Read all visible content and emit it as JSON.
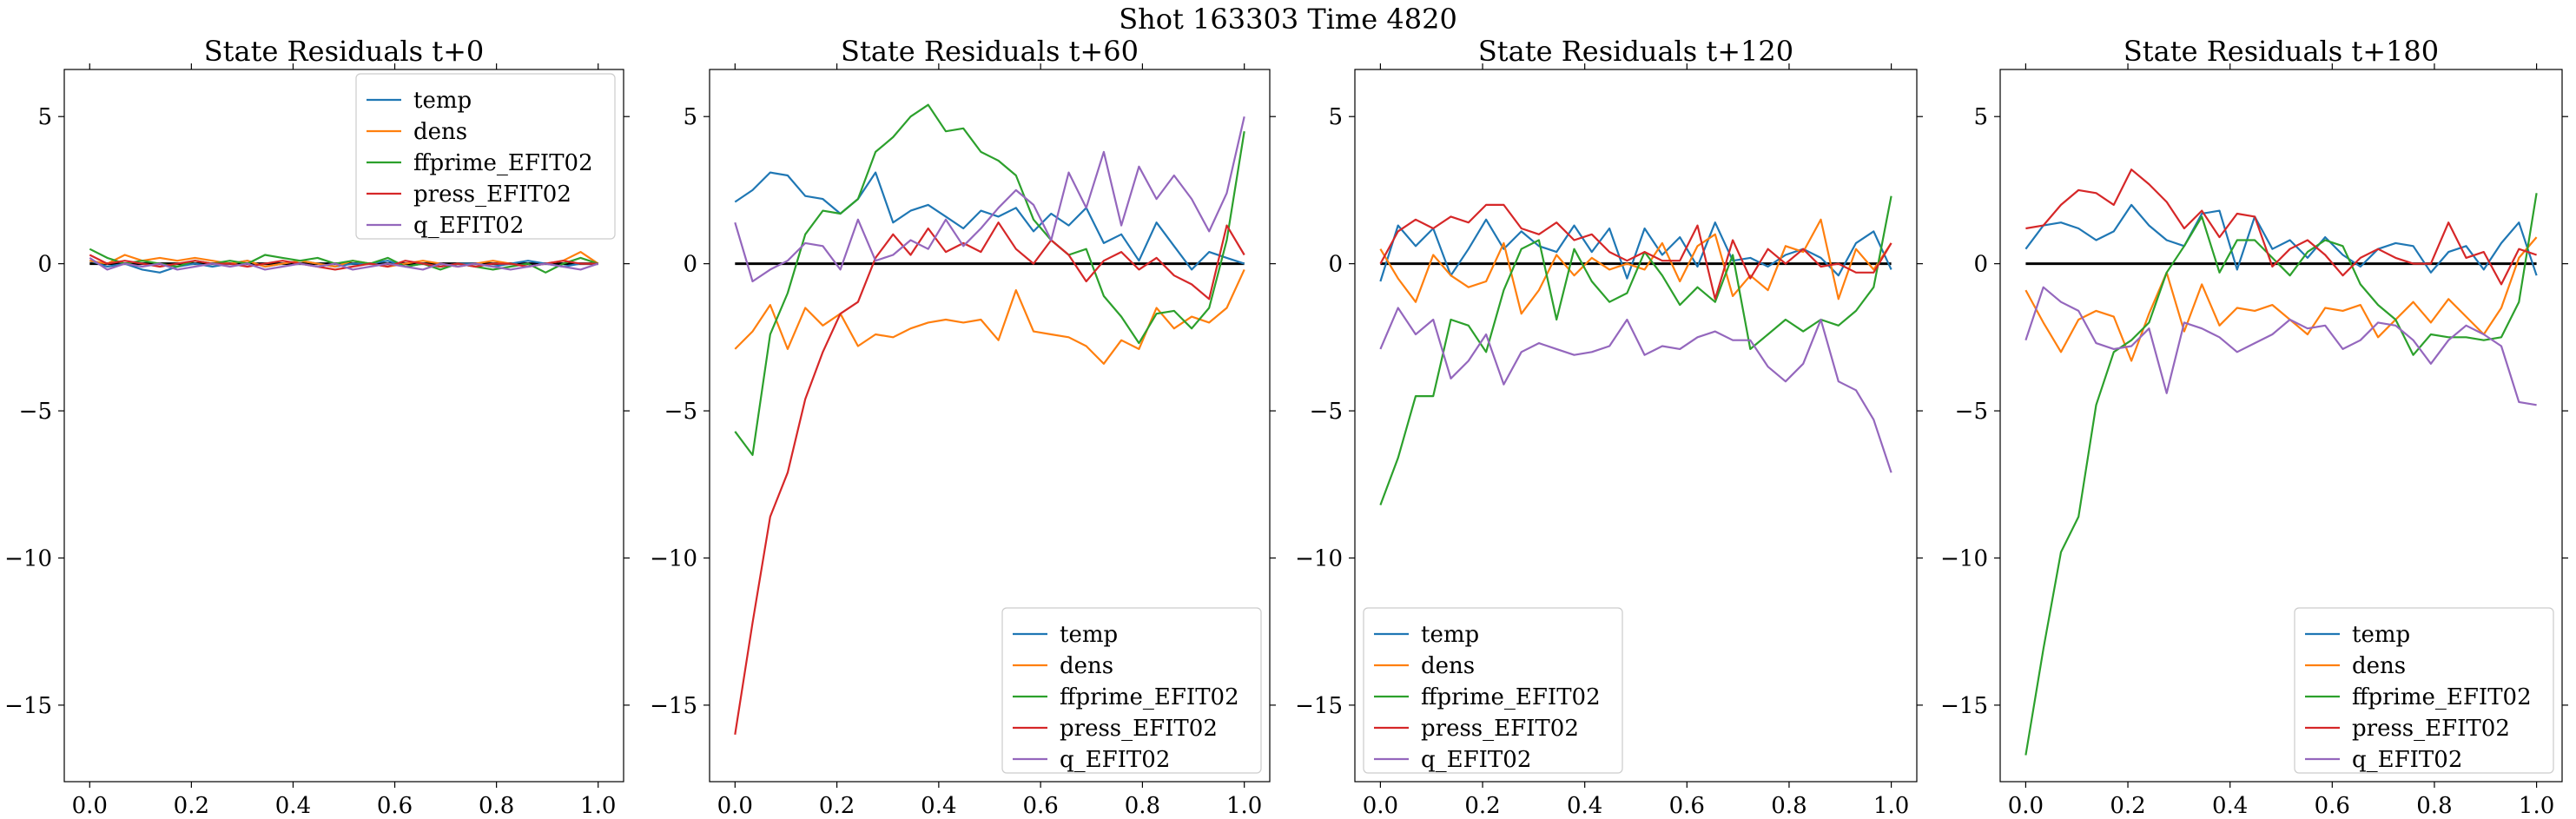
{
  "figure": {
    "suptitle": "Shot 163303   Time 4820"
  },
  "colors": {
    "temp": "#1f77b4",
    "dens": "#ff7f0e",
    "ffprime_EFIT02": "#2ca02c",
    "press_EFIT02": "#d62728",
    "q_EFIT02": "#9467bd",
    "zero_line": "#000000"
  },
  "chart_data": [
    {
      "type": "line",
      "title": "State Residuals t+0",
      "xlim": [
        -0.05,
        1.05
      ],
      "ylim": [
        -17.6,
        6.6
      ],
      "xticks": [
        "0.0",
        "0.2",
        "0.4",
        "0.6",
        "0.8",
        "1.0"
      ],
      "yticks": [
        "5",
        "0",
        "−5",
        "−10",
        "−15"
      ],
      "legend": "top-right",
      "reference_line": 0,
      "x": [
        0.0,
        0.0345,
        0.069,
        0.1034,
        0.1379,
        0.1724,
        0.2069,
        0.2414,
        0.2759,
        0.3103,
        0.3448,
        0.3793,
        0.4138,
        0.4483,
        0.4828,
        0.5172,
        0.5517,
        0.5862,
        0.6207,
        0.6552,
        0.6897,
        0.7241,
        0.7586,
        0.7931,
        0.8276,
        0.8621,
        0.8966,
        0.931,
        0.9655,
        1.0
      ],
      "series": [
        {
          "name": "temp",
          "values": [
            0.1,
            -0.1,
            0.0,
            -0.2,
            -0.3,
            -0.1,
            0.0,
            -0.1,
            0.0,
            0.1,
            -0.1,
            0.0,
            0.1,
            0.0,
            -0.1,
            0.0,
            0.0,
            0.1,
            -0.1,
            0.0,
            -0.1,
            0.0,
            0.0,
            -0.1,
            0.0,
            0.1,
            0.0,
            -0.1,
            0.0,
            0.0
          ]
        },
        {
          "name": "dens",
          "values": [
            0.1,
            0.0,
            0.3,
            0.1,
            0.2,
            0.1,
            0.2,
            0.1,
            0.0,
            0.1,
            -0.1,
            0.0,
            0.1,
            0.0,
            -0.1,
            0.1,
            0.0,
            -0.1,
            0.0,
            0.1,
            0.0,
            -0.1,
            0.0,
            0.1,
            0.0,
            -0.1,
            0.0,
            0.1,
            0.4,
            0.0
          ]
        },
        {
          "name": "ffprime_EFIT02",
          "values": [
            0.5,
            0.2,
            0.0,
            0.1,
            0.0,
            -0.1,
            0.1,
            0.0,
            0.1,
            0.0,
            0.3,
            0.2,
            0.1,
            0.2,
            0.0,
            0.1,
            0.0,
            0.2,
            -0.1,
            0.0,
            -0.2,
            0.0,
            -0.1,
            -0.2,
            -0.1,
            0.0,
            -0.3,
            0.0,
            0.2,
            0.0
          ]
        },
        {
          "name": "press_EFIT02",
          "values": [
            0.3,
            0.0,
            0.1,
            0.0,
            -0.1,
            0.0,
            0.1,
            0.0,
            0.0,
            -0.1,
            0.0,
            0.1,
            0.0,
            -0.1,
            -0.2,
            -0.1,
            0.0,
            -0.1,
            0.1,
            0.0,
            -0.1,
            0.0,
            -0.1,
            0.0,
            0.0,
            -0.1,
            0.0,
            0.1,
            0.0,
            0.0
          ]
        },
        {
          "name": "q_EFIT02",
          "values": [
            0.2,
            -0.2,
            0.0,
            -0.1,
            0.0,
            -0.2,
            -0.1,
            0.0,
            -0.1,
            0.0,
            -0.2,
            -0.1,
            0.0,
            -0.1,
            0.0,
            -0.2,
            -0.1,
            0.0,
            -0.1,
            -0.2,
            0.0,
            -0.1,
            0.0,
            -0.1,
            -0.2,
            -0.1,
            0.0,
            -0.1,
            -0.2,
            0.0
          ]
        }
      ]
    },
    {
      "type": "line",
      "title": "State Residuals t+60",
      "xlim": [
        -0.05,
        1.05
      ],
      "ylim": [
        -17.6,
        6.6
      ],
      "xticks": [
        "0.0",
        "0.2",
        "0.4",
        "0.6",
        "0.8",
        "1.0"
      ],
      "yticks": [
        "5",
        "0",
        "−5",
        "−10",
        "−15"
      ],
      "legend": "bottom-right",
      "reference_line": 0,
      "x": [
        0.0,
        0.0345,
        0.069,
        0.1034,
        0.1379,
        0.1724,
        0.2069,
        0.2414,
        0.2759,
        0.3103,
        0.3448,
        0.3793,
        0.4138,
        0.4483,
        0.4828,
        0.5172,
        0.5517,
        0.5862,
        0.6207,
        0.6552,
        0.6897,
        0.7241,
        0.7586,
        0.7931,
        0.8276,
        0.8621,
        0.8966,
        0.931,
        0.9655,
        1.0
      ],
      "series": [
        {
          "name": "temp",
          "values": [
            2.1,
            2.5,
            3.1,
            3.0,
            2.3,
            2.2,
            1.7,
            2.2,
            3.1,
            1.4,
            1.8,
            2.0,
            1.6,
            1.2,
            1.8,
            1.6,
            1.9,
            1.1,
            1.7,
            1.3,
            1.9,
            0.7,
            1.0,
            0.1,
            1.4,
            0.6,
            -0.2,
            0.4,
            0.2,
            0.0
          ]
        },
        {
          "name": "dens",
          "values": [
            -2.9,
            -2.3,
            -1.4,
            -2.9,
            -1.5,
            -2.1,
            -1.7,
            -2.8,
            -2.4,
            -2.5,
            -2.2,
            -2.0,
            -1.9,
            -2.0,
            -1.9,
            -2.6,
            -0.9,
            -2.3,
            -2.4,
            -2.5,
            -2.8,
            -3.4,
            -2.6,
            -2.9,
            -1.5,
            -2.2,
            -1.8,
            -2.0,
            -1.5,
            -0.2
          ]
        },
        {
          "name": "ffprime_EFIT02",
          "values": [
            -5.7,
            -6.5,
            -2.4,
            -1.0,
            1.0,
            1.8,
            1.7,
            2.2,
            3.8,
            4.3,
            5.0,
            5.4,
            4.5,
            4.6,
            3.8,
            3.5,
            3.0,
            1.5,
            0.8,
            0.3,
            0.5,
            -1.1,
            -1.8,
            -2.7,
            -1.7,
            -1.6,
            -2.2,
            -1.5,
            0.8,
            4.5
          ]
        },
        {
          "name": "press_EFIT02",
          "values": [
            -16.0,
            -12.2,
            -8.6,
            -7.1,
            -4.6,
            -3.0,
            -1.7,
            -1.3,
            0.2,
            1.0,
            0.3,
            1.2,
            0.4,
            0.7,
            0.4,
            1.4,
            0.5,
            0.0,
            0.8,
            0.3,
            -0.6,
            0.1,
            0.4,
            -0.2,
            0.2,
            -0.4,
            -0.7,
            -1.2,
            1.3,
            0.3
          ]
        },
        {
          "name": "q_EFIT02",
          "values": [
            1.4,
            -0.6,
            -0.2,
            0.1,
            0.7,
            0.6,
            -0.2,
            1.5,
            0.1,
            0.3,
            0.8,
            0.5,
            1.5,
            0.6,
            1.2,
            1.9,
            2.5,
            2.0,
            0.8,
            3.1,
            1.9,
            3.8,
            1.3,
            3.3,
            2.2,
            3.0,
            2.2,
            1.1,
            2.4,
            5.0
          ]
        }
      ]
    },
    {
      "type": "line",
      "title": "State Residuals t+120",
      "xlim": [
        -0.05,
        1.05
      ],
      "ylim": [
        -17.6,
        6.6
      ],
      "xticks": [
        "0.0",
        "0.2",
        "0.4",
        "0.6",
        "0.8",
        "1.0"
      ],
      "yticks": [
        "5",
        "0",
        "−5",
        "−10",
        "−15"
      ],
      "legend": "bottom-left",
      "reference_line": 0,
      "x": [
        0.0,
        0.0345,
        0.069,
        0.1034,
        0.1379,
        0.1724,
        0.2069,
        0.2414,
        0.2759,
        0.3103,
        0.3448,
        0.3793,
        0.4138,
        0.4483,
        0.4828,
        0.5172,
        0.5517,
        0.5862,
        0.6207,
        0.6552,
        0.6897,
        0.7241,
        0.7586,
        0.7931,
        0.8276,
        0.8621,
        0.8966,
        0.931,
        0.9655,
        1.0
      ],
      "series": [
        {
          "name": "temp",
          "values": [
            -0.6,
            1.3,
            0.6,
            1.2,
            -0.4,
            0.5,
            1.5,
            0.5,
            1.1,
            0.6,
            0.4,
            1.3,
            0.4,
            1.2,
            -0.5,
            1.2,
            0.3,
            0.9,
            -0.1,
            1.4,
            0.1,
            0.2,
            -0.1,
            0.3,
            0.5,
            0.2,
            -0.4,
            0.7,
            1.1,
            -0.2
          ]
        },
        {
          "name": "dens",
          "values": [
            0.5,
            -0.5,
            -1.3,
            0.3,
            -0.4,
            -0.8,
            -0.6,
            0.7,
            -1.7,
            -0.9,
            0.3,
            -0.4,
            0.2,
            -0.2,
            0.0,
            -0.2,
            0.7,
            -0.6,
            0.6,
            1.0,
            -1.1,
            -0.4,
            -0.9,
            0.6,
            0.4,
            1.5,
            -1.2,
            0.5,
            -0.2,
            0.7
          ]
        },
        {
          "name": "ffprime_EFIT02",
          "values": [
            -8.2,
            -6.6,
            -4.5,
            -4.5,
            -1.9,
            -2.1,
            -3.0,
            -0.9,
            0.5,
            0.8,
            -1.9,
            0.5,
            -0.6,
            -1.3,
            -1.0,
            0.4,
            -0.4,
            -1.4,
            -0.8,
            -1.3,
            0.3,
            -2.9,
            -2.4,
            -1.9,
            -2.3,
            -1.9,
            -2.1,
            -1.6,
            -0.8,
            2.3
          ]
        },
        {
          "name": "press_EFIT02",
          "values": [
            0.0,
            1.1,
            1.5,
            1.2,
            1.6,
            1.4,
            2.0,
            2.0,
            1.2,
            1.0,
            1.4,
            0.8,
            1.0,
            0.4,
            0.1,
            0.4,
            0.1,
            0.1,
            1.3,
            -1.2,
            0.8,
            -0.5,
            0.5,
            0.0,
            0.5,
            -0.1,
            0.0,
            -0.3,
            -0.3,
            0.7
          ]
        },
        {
          "name": "q_EFIT02",
          "values": [
            -2.9,
            -1.5,
            -2.4,
            -1.9,
            -3.9,
            -3.3,
            -2.4,
            -4.1,
            -3.0,
            -2.7,
            -2.9,
            -3.1,
            -3.0,
            -2.8,
            -1.9,
            -3.1,
            -2.8,
            -2.9,
            -2.5,
            -2.3,
            -2.6,
            -2.6,
            -3.5,
            -4.0,
            -3.4,
            -1.9,
            -4.0,
            -4.3,
            -5.3,
            -7.1
          ]
        }
      ]
    },
    {
      "type": "line",
      "title": "State Residuals t+180",
      "xlim": [
        -0.05,
        1.05
      ],
      "ylim": [
        -17.6,
        6.6
      ],
      "xticks": [
        "0.0",
        "0.2",
        "0.4",
        "0.6",
        "0.8",
        "1.0"
      ],
      "yticks": [
        "5",
        "0",
        "−5",
        "−10",
        "−15"
      ],
      "legend": "bottom-right",
      "reference_line": 0,
      "x": [
        0.0,
        0.0345,
        0.069,
        0.1034,
        0.1379,
        0.1724,
        0.2069,
        0.2414,
        0.2759,
        0.3103,
        0.3448,
        0.3793,
        0.4138,
        0.4483,
        0.4828,
        0.5172,
        0.5517,
        0.5862,
        0.6207,
        0.6552,
        0.6897,
        0.7241,
        0.7586,
        0.7931,
        0.8276,
        0.8621,
        0.8966,
        0.931,
        0.9655,
        1.0
      ],
      "series": [
        {
          "name": "temp",
          "values": [
            0.5,
            1.3,
            1.4,
            1.2,
            0.8,
            1.1,
            2.0,
            1.3,
            0.8,
            0.6,
            1.7,
            1.8,
            -0.2,
            1.6,
            0.5,
            0.8,
            0.2,
            0.9,
            0.3,
            -0.1,
            0.5,
            0.7,
            0.6,
            -0.3,
            0.4,
            0.6,
            -0.2,
            0.7,
            1.4,
            -0.4
          ]
        },
        {
          "name": "dens",
          "values": [
            -0.9,
            -2.0,
            -3.0,
            -1.9,
            -1.6,
            -1.8,
            -3.3,
            -1.7,
            -0.3,
            -2.3,
            -0.7,
            -2.1,
            -1.5,
            -1.6,
            -1.4,
            -1.9,
            -2.4,
            -1.5,
            -1.6,
            -1.4,
            -2.5,
            -1.9,
            -1.3,
            -2.0,
            -1.2,
            -1.8,
            -2.4,
            -1.5,
            0.2,
            0.9
          ]
        },
        {
          "name": "ffprime_EFIT02",
          "values": [
            -16.7,
            -13.1,
            -9.8,
            -8.6,
            -4.8,
            -3.0,
            -2.6,
            -2.0,
            -0.3,
            0.6,
            1.6,
            -0.3,
            0.8,
            0.8,
            0.2,
            -0.4,
            0.4,
            0.8,
            0.6,
            -0.7,
            -1.4,
            -1.9,
            -3.1,
            -2.4,
            -2.5,
            -2.5,
            -2.6,
            -2.5,
            -1.3,
            2.4
          ]
        },
        {
          "name": "press_EFIT02",
          "values": [
            1.2,
            1.3,
            2.0,
            2.5,
            2.4,
            2.0,
            3.2,
            2.7,
            2.1,
            1.2,
            1.8,
            0.9,
            1.7,
            1.6,
            -0.1,
            0.5,
            0.8,
            0.3,
            -0.4,
            0.2,
            0.5,
            0.2,
            0.0,
            0.0,
            1.4,
            0.2,
            0.4,
            -0.7,
            0.5,
            0.3
          ]
        },
        {
          "name": "q_EFIT02",
          "values": [
            -2.6,
            -0.8,
            -1.3,
            -1.6,
            -2.7,
            -2.9,
            -2.8,
            -2.2,
            -4.4,
            -2.0,
            -2.2,
            -2.5,
            -3.0,
            -2.7,
            -2.4,
            -1.9,
            -2.2,
            -2.1,
            -2.9,
            -2.6,
            -2.0,
            -2.1,
            -2.6,
            -3.4,
            -2.6,
            -2.1,
            -2.4,
            -2.8,
            -4.7,
            -4.8
          ]
        }
      ]
    }
  ]
}
